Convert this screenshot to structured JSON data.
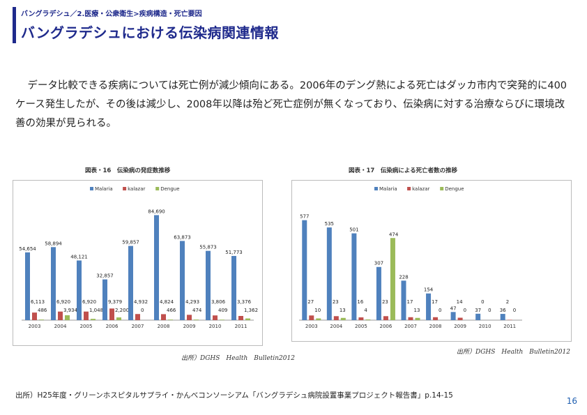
{
  "header": {
    "breadcrumb": "バングラデシュ／2.医療・公衆衛生>疾病構造・死亡要因",
    "title": "バングラデシュにおける伝染病関連情報"
  },
  "body": {
    "paragraph": "データ比較できる疾病については死亡例が減少傾向にある。2006年のデング熱による死亡はダッカ市内で突発的に400ケース発生したが、その後は減少し、2008年以降は殆ど死亡症例が無くなっており、伝染病に対する治療ならびに環境改善の効果が見られる。"
  },
  "colors": {
    "accent": "#1f2a8c",
    "malaria": "#4f81bd",
    "kalazar": "#c0504d",
    "dengue": "#9bbb59"
  },
  "chart_data": [
    {
      "type": "bar",
      "title": "図表・16　伝染病の発症数推移",
      "source": "出所）DGHS　Health　Bulletin2012",
      "categories": [
        "2003",
        "2004",
        "2005",
        "2006",
        "2007",
        "2008",
        "2009",
        "2010",
        "2011"
      ],
      "series": [
        {
          "name": "Malaria",
          "values": [
            54654,
            58894,
            48121,
            32857,
            59857,
            84690,
            63873,
            55873,
            51773
          ],
          "labels": [
            "54,654",
            "58,894",
            "48,121",
            "32,857",
            "59,857",
            "84,690",
            "63,873",
            "55,873",
            "51,773"
          ]
        },
        {
          "name": "kalazar",
          "values": [
            6113,
            6920,
            6920,
            9379,
            4932,
            4824,
            4293,
            3806,
            3376
          ],
          "labels": [
            "6,113",
            "6,920",
            "6,920",
            "9,379",
            "4,932",
            "4,824",
            "4,293",
            "3,806",
            "3,376"
          ]
        },
        {
          "name": "Dengue",
          "values": [
            486,
            3934,
            1048,
            2200,
            0,
            466,
            474,
            409,
            1362
          ],
          "labels": [
            "486",
            "3,934",
            "1,048",
            "2,200",
            "0",
            "466",
            "474",
            "409",
            "1,362"
          ]
        }
      ],
      "ylim": [
        0,
        90000
      ],
      "legend": "top-center"
    },
    {
      "type": "bar",
      "title": "図表・17　伝染病による死亡者数の推移",
      "source": "出所）DGHS　Health　Bulletin2012",
      "categories": [
        "2003",
        "2004",
        "2005",
        "2006",
        "2007",
        "2008",
        "2009",
        "2010",
        "2011"
      ],
      "series": [
        {
          "name": "Malaria",
          "values": [
            577,
            535,
            501,
            307,
            228,
            154,
            47,
            37,
            36
          ],
          "labels": [
            "577",
            "535",
            "501",
            "307",
            "228",
            "154",
            "47",
            "37",
            "36"
          ]
        },
        {
          "name": "kalazar",
          "values": [
            27,
            23,
            16,
            23,
            17,
            17,
            14,
            0,
            2
          ],
          "labels": [
            "27",
            "23",
            "16",
            "23",
            "17",
            "17",
            "14",
            "0",
            "2"
          ]
        },
        {
          "name": "Dengue",
          "values": [
            10,
            13,
            4,
            474,
            13,
            0,
            0,
            0,
            0
          ],
          "labels": [
            "10",
            "13",
            "4",
            "474",
            "13",
            "0",
            "0",
            "0",
            "0"
          ]
        }
      ],
      "ylim": [
        0,
        620
      ],
      "legend": "top-left"
    }
  ],
  "footer": {
    "note": "出所）H25年度・グリーンホスピタルサプライ・かんべコンソーシアム「バングラデシュ病院設置事業プロジェクト報告書」p.14-15",
    "page_number": "16"
  }
}
